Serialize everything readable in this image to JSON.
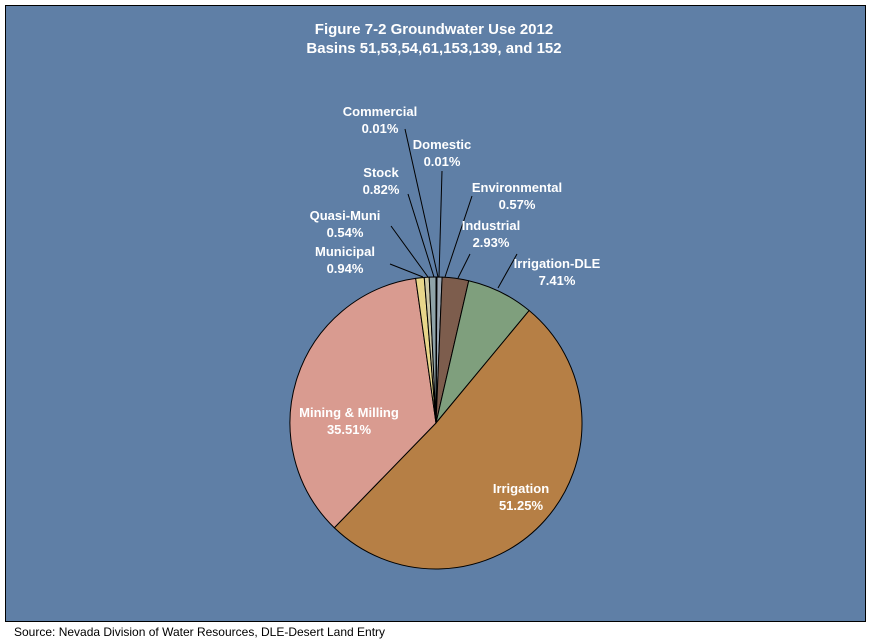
{
  "chart_data": {
    "type": "pie",
    "title": "Figure 7-2 Groundwater Use 2012",
    "subtitle": "Basins 51,53,54,61,153,139, and 152",
    "background_color": "#5f7fa6",
    "slices": [
      {
        "label": "Domestic",
        "value": 0.01,
        "value_label": "0.01%",
        "color": "#c6cc7a"
      },
      {
        "label": "Environmental",
        "value": 0.57,
        "value_label": "0.57%",
        "color": "#9aa6b2"
      },
      {
        "label": "Industrial",
        "value": 2.93,
        "value_label": "2.93%",
        "color": "#7d5d4d"
      },
      {
        "label": "Irrigation-DLE",
        "value": 7.41,
        "value_label": "7.41%",
        "color": "#7f9f7d"
      },
      {
        "label": "Irrigation",
        "value": 51.25,
        "value_label": "51.25%",
        "color": "#b67f45"
      },
      {
        "label": "Mining & Milling",
        "value": 35.51,
        "value_label": "35.51%",
        "color": "#d99b90"
      },
      {
        "label": "Municipal",
        "value": 0.94,
        "value_label": "0.94%",
        "color": "#e8d68a"
      },
      {
        "label": "Quasi-Muni",
        "value": 0.54,
        "value_label": "0.54%",
        "color": "#cfc9a6"
      },
      {
        "label": "Stock",
        "value": 0.82,
        "value_label": "0.82%",
        "color": "#8fa3a8"
      },
      {
        "label": "Commercial",
        "value": 0.01,
        "value_label": "0.01%",
        "color": "#b9b69a"
      }
    ]
  },
  "source_note": "Source: Nevada Division of Water Resources, DLE-Desert Land Entry"
}
